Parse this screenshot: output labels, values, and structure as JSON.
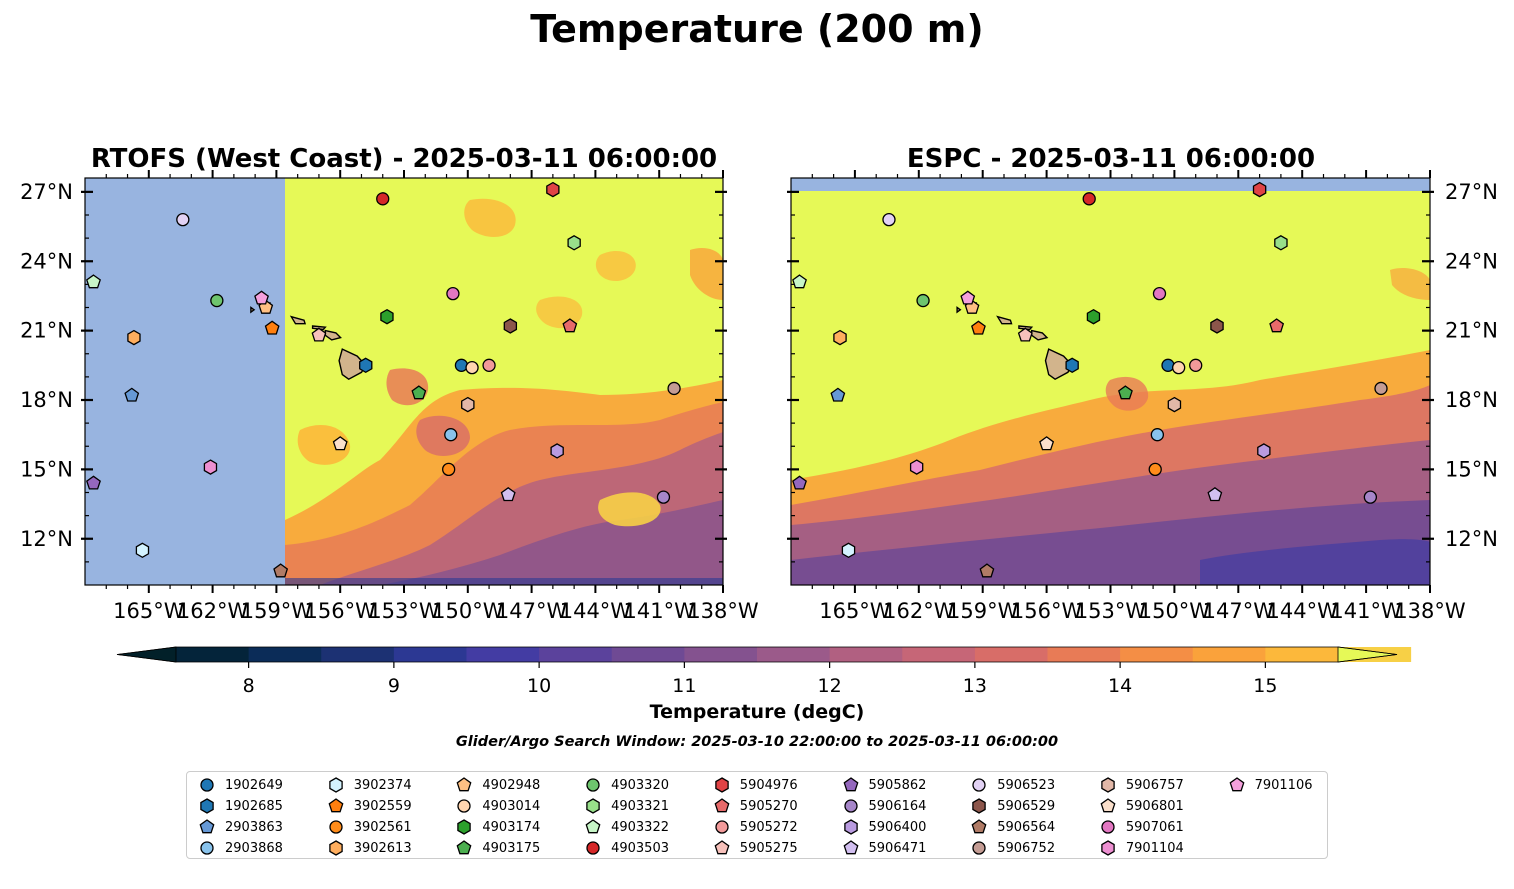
{
  "figure": {
    "suptitle": "Temperature (200 m)",
    "search_window": "Glider/Argo Search Window: 2025-03-10 22:00:00 to 2025-03-11 06:00:00",
    "colorbar_label": "Temperature (degC)"
  },
  "colors": {
    "land": "#d2b48c",
    "outside_domain": "#98b4e0",
    "warm_fill": "#e6f957"
  },
  "chart_data": [
    {
      "type": "heatmap",
      "title": "RTOFS (West Coast) - 2025-03-11 06:00:00",
      "xlim": [
        -168,
        -138
      ],
      "ylim": [
        10,
        27.6
      ],
      "xticks": [
        "165°W",
        "162°W",
        "159°W",
        "156°W",
        "153°W",
        "150°W",
        "147°W",
        "144°W",
        "141°W",
        "138°W"
      ],
      "yticks": [
        "12°N",
        "15°N",
        "18°N",
        "21°N",
        "24°N",
        "27°N"
      ],
      "yticks_side": "left",
      "model_domain_west_edge_lon": -158.5,
      "variable": "Temperature (degC)",
      "depth": "200 m"
    },
    {
      "type": "heatmap",
      "title": "ESPC - 2025-03-11 06:00:00",
      "xlim": [
        -168,
        -138
      ],
      "ylim": [
        10,
        27.6
      ],
      "xticks": [
        "165°W",
        "162°W",
        "159°W",
        "156°W",
        "153°W",
        "150°W",
        "147°W",
        "144°W",
        "141°W",
        "138°W"
      ],
      "yticks": [
        "12°N",
        "15°N",
        "18°N",
        "21°N",
        "24°N",
        "27°N"
      ],
      "yticks_side": "right",
      "variable": "Temperature (degC)",
      "depth": "200 m"
    },
    {
      "type": "colorbar",
      "label": "Temperature (degC)",
      "range": [
        7.5,
        15.5
      ],
      "step": 0.5,
      "extend": "both",
      "ticks": [
        8,
        9,
        10,
        11,
        12,
        13,
        14,
        15
      ],
      "colors": [
        "#04243a",
        "#0b2c58",
        "#1c3173",
        "#2c3893",
        "#433ca3",
        "#5b429c",
        "#6f4a94",
        "#84528f",
        "#9b5a8a",
        "#b16081",
        "#c66677",
        "#d86d68",
        "#e87b56",
        "#f48e45",
        "#faa23b",
        "#fcb83b",
        "#f7d046"
      ],
      "over_color": "#e6f957",
      "under_color": "#022029"
    },
    {
      "type": "scatter",
      "name": "glider_argo_positions",
      "markers": [
        {
          "id": "1902649",
          "shape": "circle",
          "color": "#1f77b4",
          "lon": -150.3,
          "lat": 19.5
        },
        {
          "id": "1902685",
          "shape": "hexagon",
          "color": "#1f77b4",
          "lon": -154.8,
          "lat": 19.5
        },
        {
          "id": "2903863",
          "shape": "pentagon",
          "color": "#6699d6",
          "lon": -165.8,
          "lat": 18.2
        },
        {
          "id": "2903868",
          "shape": "circle",
          "color": "#89c3ec",
          "lon": -150.8,
          "lat": 16.5
        },
        {
          "id": "3902374",
          "shape": "hexagon",
          "color": "#d4f3ff",
          "lon": -165.3,
          "lat": 11.5
        },
        {
          "id": "3902559",
          "shape": "pentagon",
          "color": "#ff7f0e",
          "lon": -159.2,
          "lat": 21.1
        },
        {
          "id": "3902561",
          "shape": "circle",
          "color": "#ff8c1a",
          "lon": -150.9,
          "lat": 15.0
        },
        {
          "id": "3902613",
          "shape": "hexagon",
          "color": "#ffae5e",
          "lon": -165.7,
          "lat": 20.7
        },
        {
          "id": "4902948",
          "shape": "pentagon",
          "color": "#ffc083",
          "lon": -159.5,
          "lat": 22.0
        },
        {
          "id": "4903014",
          "shape": "circle",
          "color": "#ffd5b0",
          "lon": -149.8,
          "lat": 19.4
        },
        {
          "id": "4903174",
          "shape": "hexagon",
          "color": "#2ca02c",
          "lon": -153.8,
          "lat": 21.6
        },
        {
          "id": "4903175",
          "shape": "pentagon",
          "color": "#4caf50",
          "lon": -152.3,
          "lat": 18.3
        },
        {
          "id": "4903320",
          "shape": "circle",
          "color": "#6ec56e",
          "lon": -161.8,
          "lat": 22.3
        },
        {
          "id": "4903321",
          "shape": "hexagon",
          "color": "#98df8a",
          "lon": -145.0,
          "lat": 24.8
        },
        {
          "id": "4903322",
          "shape": "pentagon",
          "color": "#c7f5c7",
          "lon": -167.6,
          "lat": 23.1
        },
        {
          "id": "4903503",
          "shape": "circle",
          "color": "#d62728",
          "lon": -154.0,
          "lat": 26.7
        },
        {
          "id": "5904976",
          "shape": "hexagon",
          "color": "#e04345",
          "lon": -146.0,
          "lat": 27.1
        },
        {
          "id": "5905270",
          "shape": "pentagon",
          "color": "#e86a6a",
          "lon": -145.2,
          "lat": 21.2
        },
        {
          "id": "5905272",
          "shape": "circle",
          "color": "#f29a9a",
          "lon": -149.0,
          "lat": 19.5
        },
        {
          "id": "5905275",
          "shape": "pentagon",
          "color": "#f7c1bb",
          "lon": -157.0,
          "lat": 20.8
        },
        {
          "id": "5905862",
          "shape": "pentagon",
          "color": "#9467bd",
          "lon": -167.6,
          "lat": 14.4
        },
        {
          "id": "5906164",
          "shape": "circle",
          "color": "#a686c9",
          "lon": -140.8,
          "lat": 13.8
        },
        {
          "id": "5906400",
          "shape": "hexagon",
          "color": "#b99be0",
          "lon": -145.8,
          "lat": 15.8
        },
        {
          "id": "5906471",
          "shape": "pentagon",
          "color": "#d2bff0",
          "lon": -148.1,
          "lat": 13.9
        },
        {
          "id": "5906523",
          "shape": "circle",
          "color": "#e2d2f4",
          "lon": -163.4,
          "lat": 25.8
        },
        {
          "id": "5906529",
          "shape": "hexagon",
          "color": "#8c564b",
          "lon": -148.0,
          "lat": 21.2
        },
        {
          "id": "5906564",
          "shape": "pentagon",
          "color": "#b07b66",
          "lon": -158.8,
          "lat": 10.6
        },
        {
          "id": "5906752",
          "shape": "circle",
          "color": "#c49c94",
          "lon": -140.3,
          "lat": 18.5
        },
        {
          "id": "5906757",
          "shape": "hexagon",
          "color": "#e2b8a8",
          "lon": -150.0,
          "lat": 17.8
        },
        {
          "id": "5906801",
          "shape": "pentagon",
          "color": "#fbe0cc",
          "lon": -156.0,
          "lat": 16.1
        },
        {
          "id": "5907061",
          "shape": "circle",
          "color": "#e377c2",
          "lon": -150.7,
          "lat": 22.6
        },
        {
          "id": "7901104",
          "shape": "hexagon",
          "color": "#ed8fd1",
          "lon": -162.1,
          "lat": 15.1
        },
        {
          "id": "7901106",
          "shape": "pentagon",
          "color": "#f4a0dc",
          "lon": -159.7,
          "lat": 22.4
        }
      ]
    }
  ],
  "legend": {
    "columns": 9,
    "items": [
      {
        "label": "1902649",
        "shape": "circle",
        "color": "#1f77b4"
      },
      {
        "label": "1902685",
        "shape": "hexagon",
        "color": "#1f77b4"
      },
      {
        "label": "2903863",
        "shape": "pentagon",
        "color": "#6699d6"
      },
      {
        "label": "2903868",
        "shape": "circle",
        "color": "#89c3ec"
      },
      {
        "label": "3902374",
        "shape": "hexagon",
        "color": "#d4f3ff"
      },
      {
        "label": "3902559",
        "shape": "pentagon",
        "color": "#ff7f0e"
      },
      {
        "label": "3902561",
        "shape": "circle",
        "color": "#ff8c1a"
      },
      {
        "label": "3902613",
        "shape": "hexagon",
        "color": "#ffae5e"
      },
      {
        "label": "4902948",
        "shape": "pentagon",
        "color": "#ffc083"
      },
      {
        "label": "4903014",
        "shape": "circle",
        "color": "#ffd5b0"
      },
      {
        "label": "4903174",
        "shape": "hexagon",
        "color": "#2ca02c"
      },
      {
        "label": "4903175",
        "shape": "pentagon",
        "color": "#4caf50"
      },
      {
        "label": "4903320",
        "shape": "circle",
        "color": "#6ec56e"
      },
      {
        "label": "4903321",
        "shape": "hexagon",
        "color": "#98df8a"
      },
      {
        "label": "4903322",
        "shape": "pentagon",
        "color": "#c7f5c7"
      },
      {
        "label": "4903503",
        "shape": "circle",
        "color": "#d62728"
      },
      {
        "label": "5904976",
        "shape": "hexagon",
        "color": "#e04345"
      },
      {
        "label": "5905270",
        "shape": "pentagon",
        "color": "#e86a6a"
      },
      {
        "label": "5905272",
        "shape": "circle",
        "color": "#f29a9a"
      },
      {
        "label": "5905275",
        "shape": "pentagon",
        "color": "#f7c1bb"
      },
      {
        "label": "5905862",
        "shape": "pentagon",
        "color": "#9467bd"
      },
      {
        "label": "5906164",
        "shape": "circle",
        "color": "#a686c9"
      },
      {
        "label": "5906400",
        "shape": "hexagon",
        "color": "#b99be0"
      },
      {
        "label": "5906471",
        "shape": "pentagon",
        "color": "#d2bff0"
      },
      {
        "label": "5906523",
        "shape": "circle",
        "color": "#e2d2f4"
      },
      {
        "label": "5906529",
        "shape": "hexagon",
        "color": "#8c564b"
      },
      {
        "label": "5906564",
        "shape": "pentagon",
        "color": "#b07b66"
      },
      {
        "label": "5906752",
        "shape": "circle",
        "color": "#c49c94"
      },
      {
        "label": "5906757",
        "shape": "hexagon",
        "color": "#e2b8a8"
      },
      {
        "label": "5906801",
        "shape": "pentagon",
        "color": "#fbe0cc"
      },
      {
        "label": "5907061",
        "shape": "circle",
        "color": "#e377c2"
      },
      {
        "label": "7901104",
        "shape": "hexagon",
        "color": "#ed8fd1"
      },
      {
        "label": "7901106",
        "shape": "pentagon",
        "color": "#f4a0dc"
      }
    ]
  }
}
